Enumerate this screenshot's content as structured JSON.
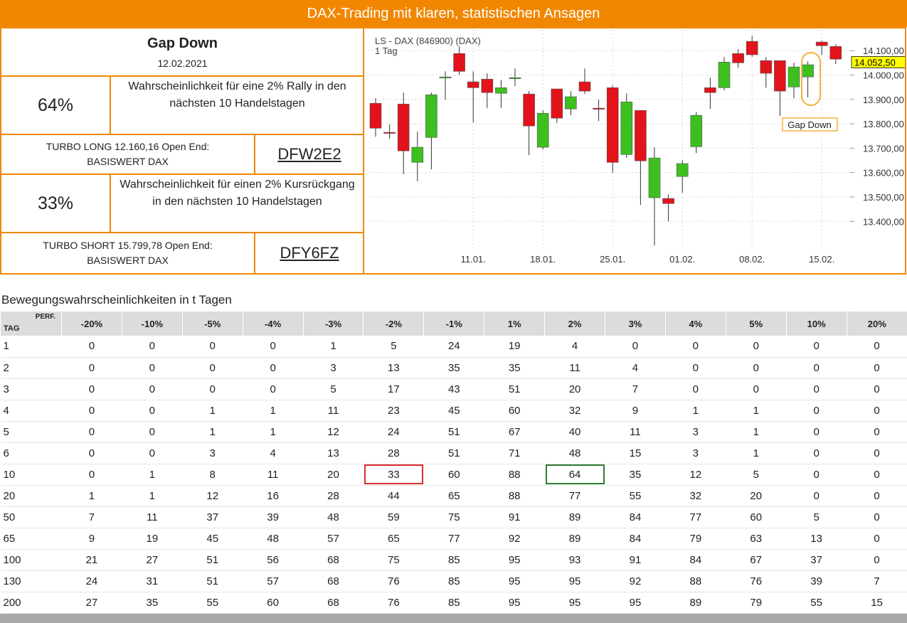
{
  "header": {
    "title": "DAX-Trading mit klaren, statistischen Ansagen"
  },
  "summary": {
    "pattern": "Gap Down",
    "date": "12.02.2021",
    "long": {
      "probability": "64%",
      "text": "Wahrscheinlichkeit für eine 2% Rally in den nächsten 10 Handelstagen",
      "product": "TURBO LONG 12.160,16 Open End:",
      "underlying": "BASISWERT DAX",
      "code": "DFW2E2"
    },
    "short": {
      "probability": "33%",
      "text": "Wahrscheinlichkeit für einen 2% Kursrückgang in den nächsten 10 Handelstagen",
      "product": "TURBO SHORT 15.799,78 Open End:",
      "underlying": "BASISWERT DAX",
      "code": "DFY6FZ"
    }
  },
  "chart_data": {
    "type": "candlestick",
    "title": "LS - DAX (846900) (DAX)",
    "subtitle": "1 Tag",
    "annotation": "Gap Down",
    "categories": [
      null,
      null,
      null,
      null,
      null,
      null,
      null,
      "11.01.",
      null,
      null,
      null,
      null,
      "18.01.",
      null,
      null,
      null,
      null,
      "25.01.",
      null,
      null,
      null,
      null,
      "01.02.",
      null,
      null,
      null,
      null,
      "08.02.",
      null,
      null,
      null,
      null,
      "15.02.",
      null
    ],
    "open": [
      13884,
      13765,
      13881,
      13642,
      13744,
      13989,
      14088,
      13972,
      13983,
      13925,
      13986,
      13922,
      13704,
      13943,
      13861,
      13972,
      13864,
      13948,
      13674,
      13855,
      13497,
      13494,
      13584,
      13706,
      13948,
      13948,
      14088,
      14138,
      14059,
      14059,
      13951,
      13992,
      14135,
      14117
    ],
    "high": [
      13905,
      13797,
      13928,
      13768,
      13928,
      14015,
      14117,
      14015,
      14007,
      13980,
      14027,
      13934,
      13855,
      13943,
      13934,
      14027,
      13899,
      13957,
      13925,
      13855,
      13704,
      13511,
      13651,
      13849,
      13989,
      14074,
      14106,
      14161,
      14074,
      14059,
      14050,
      14056,
      14141,
      14126
    ],
    "low": [
      13747,
      13739,
      13593,
      13564,
      13613,
      13899,
      14001,
      13806,
      13864,
      13864,
      13954,
      13672,
      13695,
      13803,
      13835,
      13922,
      13811,
      13599,
      13660,
      13467,
      13301,
      13400,
      13517,
      13680,
      13861,
      13937,
      14030,
      14074,
      13948,
      13832,
      13905,
      13908,
      14083,
      14045
    ],
    "close": [
      13782,
      13762,
      13689,
      13704,
      13919,
      13992,
      14015,
      13948,
      13928,
      13948,
      13989,
      13791,
      13843,
      13823,
      13911,
      13934,
      13861,
      13642,
      13890,
      13648,
      13660,
      13473,
      13637,
      13835,
      13928,
      14053,
      14050,
      14083,
      14007,
      13934,
      14033,
      14042,
      14120,
      14065
    ],
    "up_color": "#3cbf1f",
    "down_color": "#e2131b",
    "last_price": {
      "value": 14052.5,
      "label": "14.052,50"
    },
    "ylim": [
      13293,
      14185
    ],
    "yticks": [
      {
        "value": 13400,
        "label": "13.400,00"
      },
      {
        "value": 13500,
        "label": "13.500,00"
      },
      {
        "value": 13600,
        "label": "13.600,00"
      },
      {
        "value": 13700,
        "label": "13.700,00"
      },
      {
        "value": 13800,
        "label": "13.800,00"
      },
      {
        "value": 13900,
        "label": "13.900,00"
      },
      {
        "value": 14000,
        "label": "14.000,00"
      },
      {
        "value": 14100,
        "label": "14.100,00"
      }
    ],
    "grid": true
  },
  "table": {
    "title": "Bewegungswahrscheinlichkeiten in t Tagen",
    "corner_top": "PERF.",
    "corner_bottom": "TAG",
    "columns": [
      "-20%",
      "-10%",
      "-5%",
      "-4%",
      "-3%",
      "-2%",
      "-1%",
      "1%",
      "2%",
      "3%",
      "4%",
      "5%",
      "10%",
      "20%"
    ],
    "rows": [
      [
        1,
        0,
        0,
        0,
        0,
        1,
        5,
        24,
        19,
        4,
        0,
        0,
        0,
        0,
        0
      ],
      [
        2,
        0,
        0,
        0,
        0,
        3,
        13,
        35,
        35,
        11,
        4,
        0,
        0,
        0,
        0
      ],
      [
        3,
        0,
        0,
        0,
        0,
        5,
        17,
        43,
        51,
        20,
        7,
        0,
        0,
        0,
        0
      ],
      [
        4,
        0,
        0,
        1,
        1,
        11,
        23,
        45,
        60,
        32,
        9,
        1,
        1,
        0,
        0
      ],
      [
        5,
        0,
        0,
        1,
        1,
        12,
        24,
        51,
        67,
        40,
        11,
        3,
        1,
        0,
        0
      ],
      [
        6,
        0,
        0,
        3,
        4,
        13,
        28,
        51,
        71,
        48,
        15,
        3,
        1,
        0,
        0
      ],
      [
        10,
        0,
        1,
        8,
        11,
        20,
        33,
        60,
        88,
        64,
        35,
        12,
        5,
        0,
        0
      ],
      [
        20,
        1,
        1,
        12,
        16,
        28,
        44,
        65,
        88,
        77,
        55,
        32,
        20,
        0,
        0
      ],
      [
        50,
        7,
        11,
        37,
        39,
        48,
        59,
        75,
        91,
        89,
        84,
        77,
        60,
        5,
        0
      ],
      [
        65,
        9,
        19,
        45,
        48,
        57,
        65,
        77,
        92,
        89,
        84,
        79,
        63,
        13,
        0
      ],
      [
        100,
        21,
        27,
        51,
        56,
        68,
        75,
        85,
        95,
        93,
        91,
        84,
        67,
        37,
        0
      ],
      [
        130,
        24,
        31,
        51,
        57,
        68,
        76,
        85,
        95,
        95,
        92,
        88,
        76,
        39,
        7
      ],
      [
        200,
        27,
        35,
        55,
        60,
        68,
        76,
        85,
        95,
        95,
        95,
        89,
        79,
        55,
        15
      ]
    ],
    "highlights": [
      {
        "row": 6,
        "col": 6,
        "color": "#d9302c"
      },
      {
        "row": 6,
        "col": 9,
        "color": "#2e7d32"
      }
    ]
  }
}
